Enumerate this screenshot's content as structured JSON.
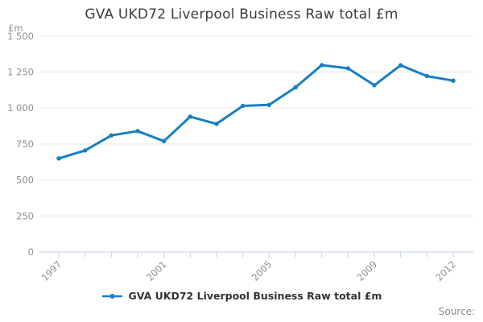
{
  "title": "GVA UKD72 Liverpool Business Raw total £m",
  "unit_label": "£m",
  "legend": {
    "label": "GVA UKD72 Liverpool Business Raw total £m"
  },
  "source_label": "Source:",
  "colors": {
    "line": "#1680c2",
    "title_text": "#3c3c3c",
    "axis_text": "#8f8f8f",
    "grid": "#e8e8e8",
    "axis": "#c3d2e4",
    "legend_text": "#333333",
    "source_text": "#8a8a8a"
  },
  "chart_data": {
    "type": "line",
    "title": "GVA UKD72 Liverpool Business Raw total £m",
    "xlabel": "",
    "ylabel": "£m",
    "x": [
      1997,
      1998,
      1999,
      2000,
      2001,
      2002,
      2003,
      2004,
      2005,
      2006,
      2007,
      2008,
      2009,
      2010,
      2011,
      2012
    ],
    "series": [
      {
        "name": "GVA UKD72 Liverpool Business Raw total £m",
        "values": [
          650,
          705,
          810,
          840,
          770,
          940,
          890,
          1015,
          1022,
          1143,
          1298,
          1276,
          1158,
          1297,
          1222,
          1190
        ]
      }
    ],
    "ylim": [
      0,
      1500
    ],
    "y_ticks": [
      0,
      250,
      500,
      750,
      1000,
      1250,
      1500
    ],
    "y_tick_labels": [
      "0",
      "250",
      "500",
      "750",
      "1 000",
      "1 250",
      "1 500"
    ],
    "x_tick_indices": [
      0,
      4,
      8,
      12,
      15
    ],
    "x_tick_labels": [
      "1997",
      "2001",
      "2005",
      "2009",
      "2012"
    ],
    "grid": true,
    "legend_position": "bottom",
    "markers": true
  }
}
